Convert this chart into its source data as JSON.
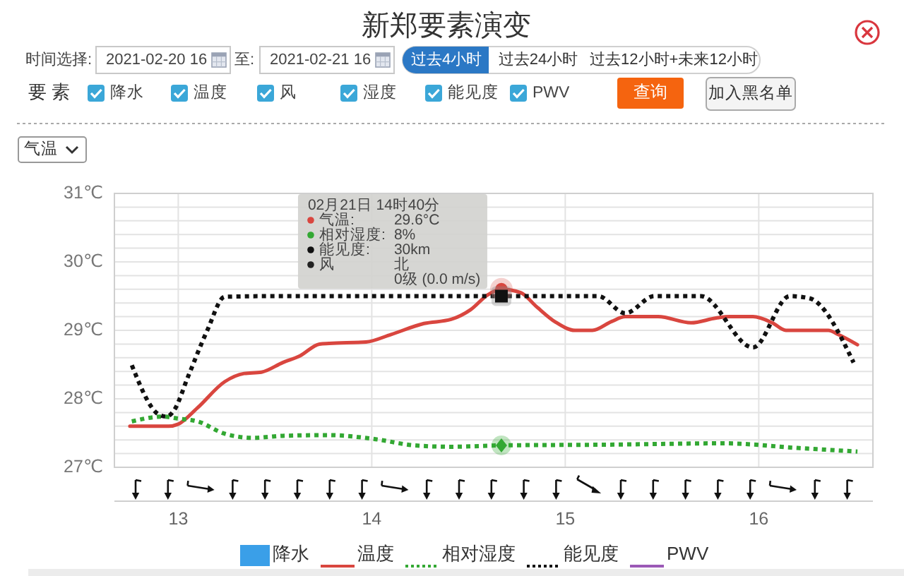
{
  "chart_data": {
    "type": "line",
    "title": "新郑要素演变",
    "annotations": [
      "02月21日 14时40分",
      "气温:",
      "29.6°C",
      "相对湿度:",
      "8%",
      "能见度:",
      "30km",
      "风",
      "北",
      "0级 (0.0 m/s)",
      "时间选择:",
      "2021-02-20 16",
      "至:",
      "2021-02-21 16",
      "过去4小时",
      "过去24小时",
      "过去12小时+未来12小时",
      "要 素",
      "降水",
      "温度",
      "风",
      "湿度",
      "能见度",
      "PWV",
      "查询",
      "加入黑名单",
      "气温"
    ],
    "xlim": [
      12.67,
      16.59
    ],
    "xticks": [
      13,
      14,
      15,
      16
    ],
    "ylim": [
      27,
      31
    ],
    "yticks": [
      {
        "value": 27,
        "label": "27℃"
      },
      {
        "value": 27.2,
        "label": null
      },
      {
        "value": 27.4,
        "label": null
      },
      {
        "value": 27.6,
        "label": null
      },
      {
        "value": 27.8,
        "label": null
      },
      {
        "value": 28,
        "label": "28℃"
      },
      {
        "value": 28.2,
        "label": null
      },
      {
        "value": 28.4,
        "label": null
      },
      {
        "value": 28.6,
        "label": null
      },
      {
        "value": 28.8,
        "label": null
      },
      {
        "value": 29,
        "label": "29℃"
      },
      {
        "value": 29.2,
        "label": null
      },
      {
        "value": 29.4,
        "label": null
      },
      {
        "value": 29.6,
        "label": null
      },
      {
        "value": 29.8,
        "label": null
      },
      {
        "value": 30,
        "label": "30℃"
      },
      {
        "value": 30.2,
        "label": null
      },
      {
        "value": 30.4,
        "label": null
      },
      {
        "value": 30.6,
        "label": null
      },
      {
        "value": 30.8,
        "label": null
      },
      {
        "value": 31,
        "label": "31℃"
      }
    ],
    "grid": true,
    "legend": "bottom",
    "series": [
      {
        "name": "降水",
        "type": "bar",
        "color": "#3a9fe8"
      },
      {
        "name": "温度",
        "color": "#d9463f",
        "line_style": "solid",
        "x": [
          12.75,
          12.95,
          13.0,
          13.1,
          13.24,
          13.34,
          13.43,
          13.54,
          13.63,
          13.73,
          13.78,
          13.97,
          14.1,
          14.27,
          14.41,
          14.51,
          14.6,
          14.67,
          14.77,
          14.85,
          14.95,
          15.05,
          15.14,
          15.24,
          15.31,
          15.48,
          15.65,
          15.78,
          15.85,
          15.97,
          16.07,
          16.14,
          16.36,
          16.41,
          16.51
        ],
        "values": [
          27.6,
          27.6,
          27.63,
          27.87,
          28.25,
          28.37,
          28.39,
          28.53,
          28.63,
          28.8,
          28.81,
          28.83,
          28.94,
          29.1,
          29.16,
          29.3,
          29.52,
          29.6,
          29.55,
          29.35,
          29.12,
          29.0,
          29.0,
          29.13,
          29.2,
          29.2,
          29.11,
          29.18,
          29.2,
          29.2,
          29.11,
          29.0,
          29.0,
          28.94,
          28.79
        ]
      },
      {
        "name": "相对湿度",
        "color": "#33a833",
        "line_style": "dotted",
        "x": [
          12.76,
          12.92,
          13.0,
          13.1,
          13.24,
          13.39,
          13.54,
          13.78,
          14.02,
          14.22,
          14.41,
          14.67,
          15.2,
          15.82,
          16.21,
          16.51
        ],
        "values": [
          27.67,
          27.74,
          27.71,
          27.67,
          27.49,
          27.43,
          27.46,
          27.47,
          27.41,
          27.32,
          27.3,
          27.32,
          27.33,
          27.35,
          27.28,
          27.23
        ]
      },
      {
        "name": "能见度",
        "color": "#111111",
        "line_style": "dotted",
        "x": [
          12.76,
          12.9,
          12.94,
          12.98,
          13.05,
          13.15,
          13.24,
          13.5,
          14.0,
          14.67,
          15.17,
          15.31,
          15.46,
          15.7,
          15.97,
          16.16,
          16.26,
          16.49
        ],
        "values": [
          28.49,
          27.77,
          27.74,
          27.84,
          28.32,
          29.0,
          29.49,
          29.5,
          29.5,
          29.5,
          29.5,
          29.25,
          29.5,
          29.5,
          28.75,
          29.5,
          29.47,
          28.53
        ]
      },
      {
        "name": "PWV",
        "color": "#9b59b6",
        "line_style": "solid"
      }
    ]
  }
}
